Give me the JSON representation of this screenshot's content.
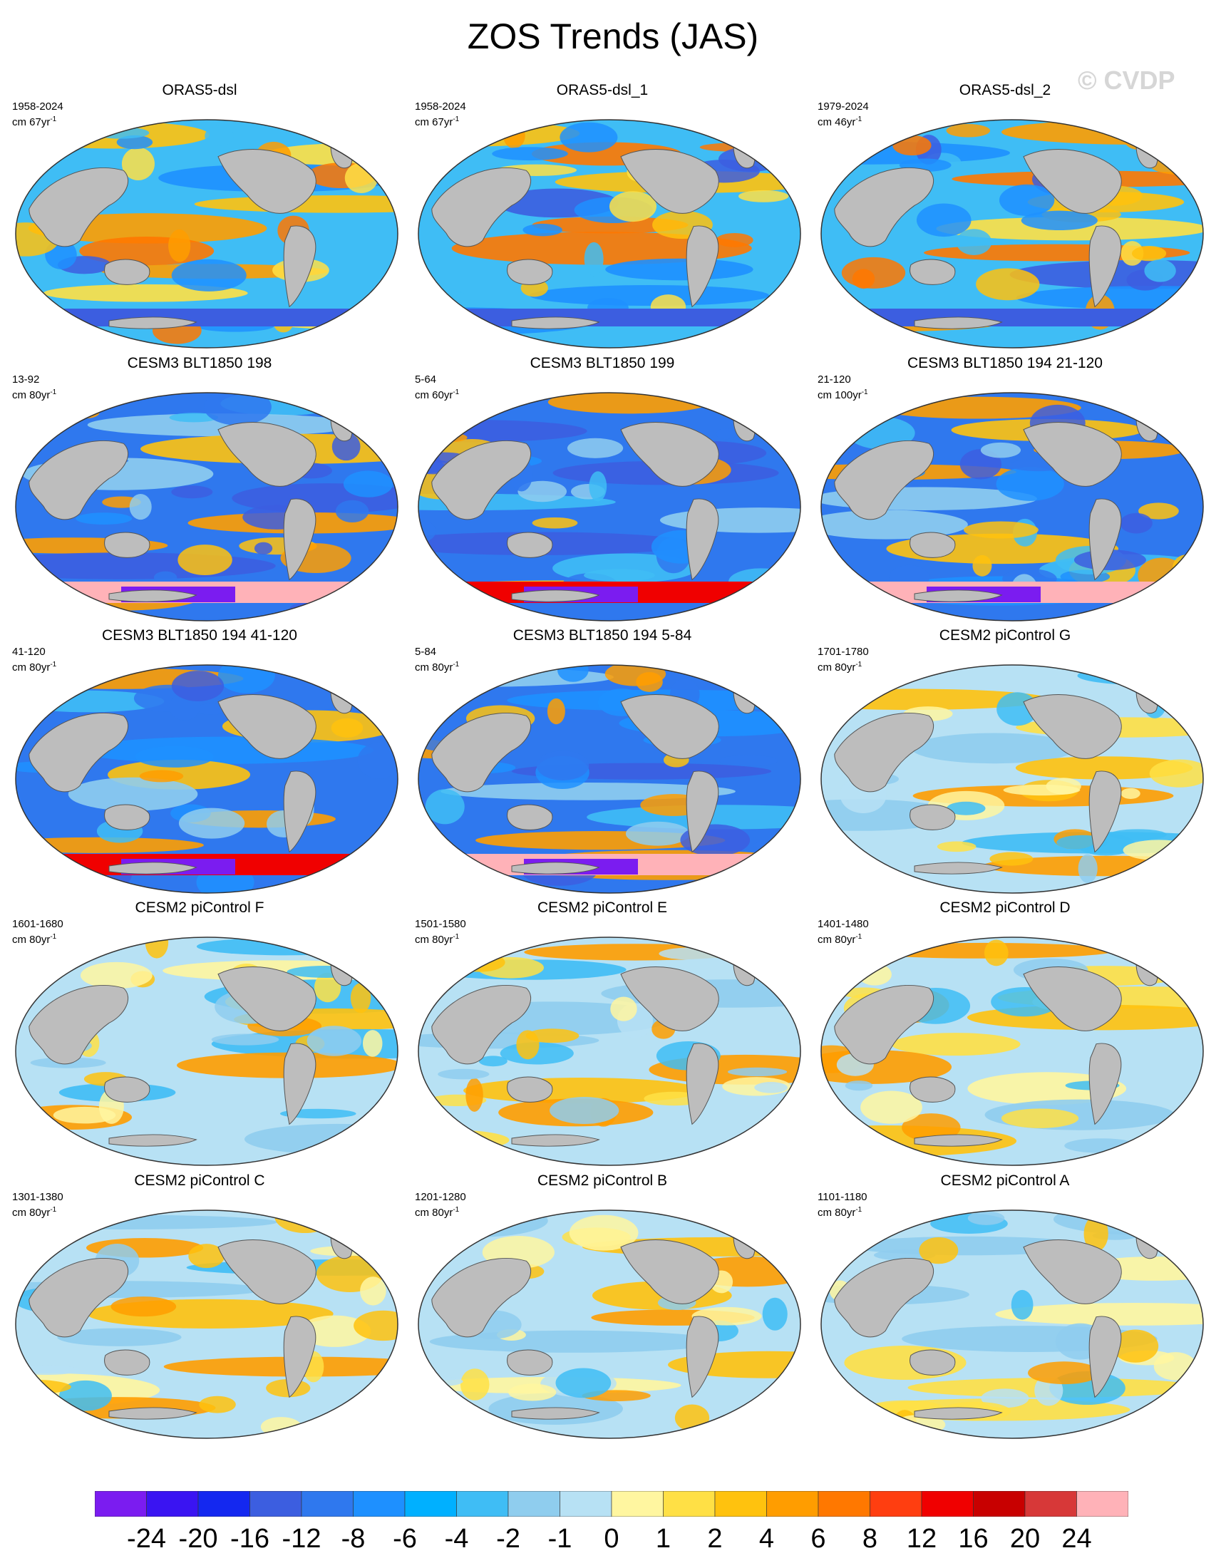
{
  "title": "ZOS Trends (JAS)",
  "watermark": "© CVDP",
  "units_prefix": "cm ",
  "units_suffix": "yr",
  "units_exp": "-1",
  "panels": [
    {
      "title": "ORAS5-dsl",
      "years": "1958-2024",
      "span": "67",
      "pattern": "oras"
    },
    {
      "title": "ORAS5-dsl_1",
      "years": "1958-2024",
      "span": "67",
      "pattern": "oras"
    },
    {
      "title": "ORAS5-dsl_2",
      "years": "1979-2024",
      "span": "46",
      "pattern": "oras"
    },
    {
      "title": "CESM3 BLT1850 198",
      "years": "13-92",
      "span": "80",
      "pattern": "cesm3"
    },
    {
      "title": "CESM3 BLT1850 199",
      "years": "5-64",
      "span": "60",
      "pattern": "cesm3"
    },
    {
      "title": "CESM3 BLT1850 194 21-120",
      "years": "21-120",
      "span": "100",
      "pattern": "cesm3"
    },
    {
      "title": "CESM3 BLT1850 194 41-120",
      "years": "41-120",
      "span": "80",
      "pattern": "cesm3"
    },
    {
      "title": "CESM3 BLT1850 194 5-84",
      "years": "5-84",
      "span": "80",
      "pattern": "cesm3"
    },
    {
      "title": "CESM2 piControl G",
      "years": "1701-1780",
      "span": "80",
      "pattern": "cesm2"
    },
    {
      "title": "CESM2 piControl F",
      "years": "1601-1680",
      "span": "80",
      "pattern": "cesm2"
    },
    {
      "title": "CESM2 piControl E",
      "years": "1501-1580",
      "span": "80",
      "pattern": "cesm2"
    },
    {
      "title": "CESM2 piControl D",
      "years": "1401-1480",
      "span": "80",
      "pattern": "cesm2"
    },
    {
      "title": "CESM2 piControl C",
      "years": "1301-1380",
      "span": "80",
      "pattern": "cesm2"
    },
    {
      "title": "CESM2 piControl B",
      "years": "1201-1280",
      "span": "80",
      "pattern": "cesm2"
    },
    {
      "title": "CESM2 piControl A",
      "years": "1101-1180",
      "span": "80",
      "pattern": "cesm2"
    }
  ],
  "colorbar": {
    "colors": [
      "#7b1cf0",
      "#3a14f2",
      "#1428f0",
      "#3c5ee0",
      "#2f78ee",
      "#1e90ff",
      "#00b0ff",
      "#3fbdf5",
      "#8fcdee",
      "#b7e1f4",
      "#fff6a0",
      "#ffe045",
      "#ffc20e",
      "#ff9d00",
      "#ff7800",
      "#ff3e10",
      "#f00000",
      "#c80000",
      "#d73838",
      "#ffb2b8"
    ],
    "labels": [
      "-24",
      "-20",
      "-16",
      "-12",
      "-8",
      "-6",
      "-4",
      "-2",
      "-1",
      "0",
      "1",
      "2",
      "4",
      "6",
      "8",
      "12",
      "16",
      "20",
      "24"
    ]
  },
  "land_color": "#bdbdbd",
  "palettes": {
    "oras": [
      "#3fbdf5",
      "#1e90ff",
      "#ffc20e",
      "#ff9d00",
      "#ff7800",
      "#3c5ee0",
      "#ffe045"
    ],
    "cesm3": [
      "#2f78ee",
      "#1e90ff",
      "#3c5ee0",
      "#3fbdf5",
      "#ff9d00",
      "#8fcdee",
      "#ffc20e"
    ],
    "cesm2": [
      "#b7e1f4",
      "#8fcdee",
      "#fff6a0",
      "#ffe045",
      "#ffc20e",
      "#3fbdf5",
      "#ff9d00"
    ]
  }
}
